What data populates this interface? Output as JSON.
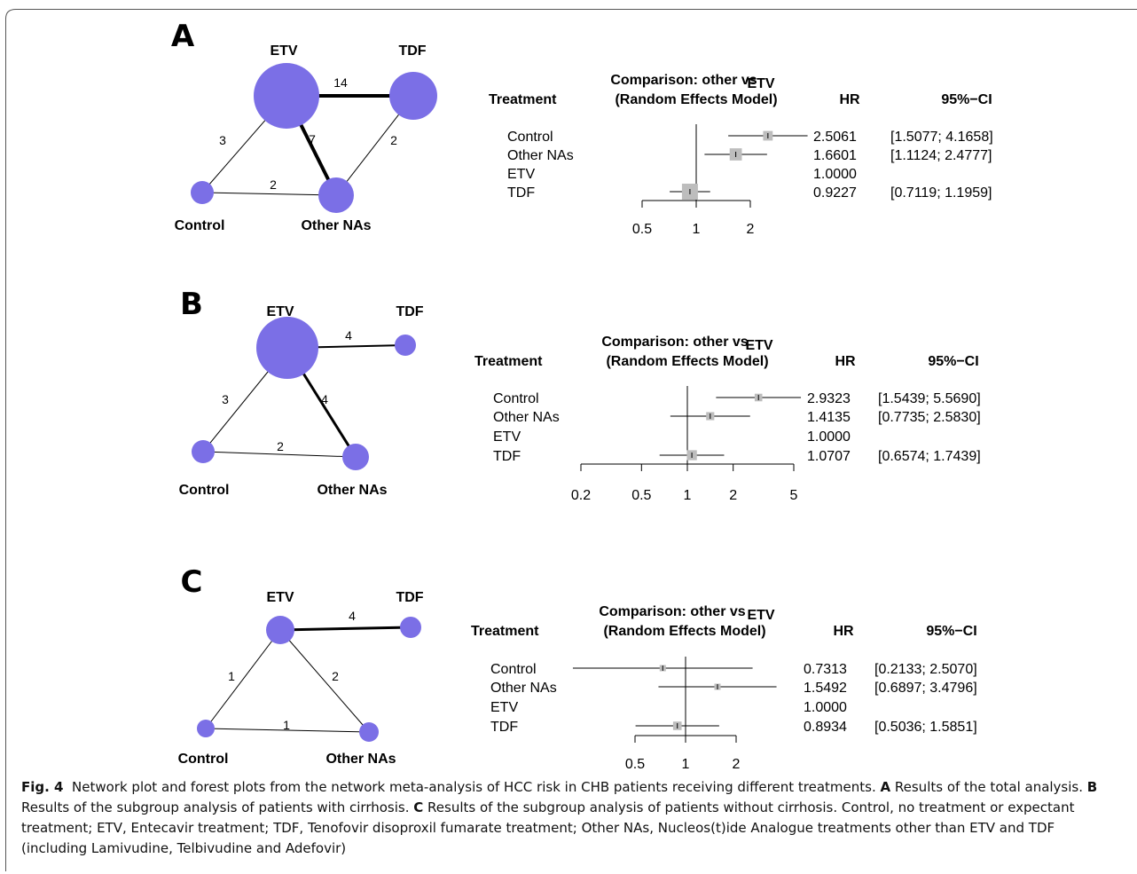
{
  "panels": [
    {
      "letter": "A",
      "network": {
        "nodes": [
          {
            "id": "ETV",
            "label": "ETV"
          },
          {
            "id": "TDF",
            "label": "TDF"
          },
          {
            "id": "Control",
            "label": "Control"
          },
          {
            "id": "OtherNAs",
            "label": "Other NAs"
          }
        ],
        "edges": [
          {
            "from": "ETV",
            "to": "TDF",
            "label": "14"
          },
          {
            "from": "ETV",
            "to": "Control",
            "label": "3"
          },
          {
            "from": "ETV",
            "to": "OtherNAs",
            "label": "7"
          },
          {
            "from": "TDF",
            "to": "OtherNAs",
            "label": "2"
          },
          {
            "from": "Control",
            "to": "OtherNAs",
            "label": "2"
          }
        ]
      },
      "forest": {
        "header_treatment": "Treatment",
        "header_comparison_1": "Comparison: other vs",
        "header_reference": "ETV",
        "header_comparison_2": "(Random Effects Model)",
        "header_hr": "HR",
        "header_ci": "95%−CI",
        "rows": [
          {
            "treatment": "Control",
            "hr": 2.5061,
            "lo": 1.5077,
            "hi": 4.1658,
            "hr_text": "2.5061",
            "ci_text": "[1.5077; 4.1658]"
          },
          {
            "treatment": "Other NAs",
            "hr": 1.6601,
            "lo": 1.1124,
            "hi": 2.4777,
            "hr_text": "1.6601",
            "ci_text": "[1.1124; 2.4777]"
          },
          {
            "treatment": "ETV",
            "hr": null,
            "lo": null,
            "hi": null,
            "hr_text": "1.0000",
            "ci_text": ""
          },
          {
            "treatment": "TDF",
            "hr": 0.9227,
            "lo": 0.7119,
            "hi": 1.1959,
            "hr_text": "0.9227",
            "ci_text": "[0.7119; 1.1959]"
          }
        ],
        "ticks": [
          0.5,
          1,
          2
        ],
        "tick_labels": [
          "0.5",
          "1",
          "2"
        ]
      }
    },
    {
      "letter": "B",
      "network": {
        "nodes": [
          {
            "id": "ETV",
            "label": "ETV"
          },
          {
            "id": "TDF",
            "label": "TDF"
          },
          {
            "id": "Control",
            "label": "Control"
          },
          {
            "id": "OtherNAs",
            "label": "Other NAs"
          }
        ],
        "edges": [
          {
            "from": "ETV",
            "to": "TDF",
            "label": "4"
          },
          {
            "from": "ETV",
            "to": "Control",
            "label": "3"
          },
          {
            "from": "ETV",
            "to": "OtherNAs",
            "label": "4"
          },
          {
            "from": "Control",
            "to": "OtherNAs",
            "label": "2"
          }
        ]
      },
      "forest": {
        "header_treatment": "Treatment",
        "header_comparison_1": "Comparison: other vs",
        "header_reference": "ETV",
        "header_comparison_2": "(Random Effects Model)",
        "header_hr": "HR",
        "header_ci": "95%−CI",
        "rows": [
          {
            "treatment": "Control",
            "hr": 2.9323,
            "lo": 1.5439,
            "hi": 5.569,
            "hr_text": "2.9323",
            "ci_text": "[1.5439; 5.5690]"
          },
          {
            "treatment": "Other NAs",
            "hr": 1.4135,
            "lo": 0.7735,
            "hi": 2.583,
            "hr_text": "1.4135",
            "ci_text": "[0.7735; 2.5830]"
          },
          {
            "treatment": "ETV",
            "hr": null,
            "lo": null,
            "hi": null,
            "hr_text": "1.0000",
            "ci_text": ""
          },
          {
            "treatment": "TDF",
            "hr": 1.0707,
            "lo": 0.6574,
            "hi": 1.7439,
            "hr_text": "1.0707",
            "ci_text": "[0.6574; 1.7439]"
          }
        ],
        "ticks": [
          0.2,
          0.5,
          1,
          2,
          5
        ],
        "tick_labels": [
          "0.2",
          "0.5",
          "1",
          "2",
          "5"
        ]
      }
    },
    {
      "letter": "C",
      "network": {
        "nodes": [
          {
            "id": "ETV",
            "label": "ETV"
          },
          {
            "id": "TDF",
            "label": "TDF"
          },
          {
            "id": "Control",
            "label": "Control"
          },
          {
            "id": "OtherNAs",
            "label": "Other NAs"
          }
        ],
        "edges": [
          {
            "from": "ETV",
            "to": "TDF",
            "label": "4"
          },
          {
            "from": "ETV",
            "to": "Control",
            "label": "1"
          },
          {
            "from": "ETV",
            "to": "OtherNAs",
            "label": "2"
          },
          {
            "from": "Control",
            "to": "OtherNAs",
            "label": "1"
          }
        ]
      },
      "forest": {
        "header_treatment": "Treatment",
        "header_comparison_1": "Comparison: other vs",
        "header_reference": "ETV",
        "header_comparison_2": "(Random Effects Model)",
        "header_hr": "HR",
        "header_ci": "95%−CI",
        "rows": [
          {
            "treatment": "Control",
            "hr": 0.7313,
            "lo": 0.2133,
            "hi": 2.507,
            "hr_text": "0.7313",
            "ci_text": "[0.2133; 2.5070]"
          },
          {
            "treatment": "Other NAs",
            "hr": 1.5492,
            "lo": 0.6897,
            "hi": 3.4796,
            "hr_text": "1.5492",
            "ci_text": "[0.6897; 3.4796]"
          },
          {
            "treatment": "ETV",
            "hr": null,
            "lo": null,
            "hi": null,
            "hr_text": "1.0000",
            "ci_text": ""
          },
          {
            "treatment": "TDF",
            "hr": 0.8934,
            "lo": 0.5036,
            "hi": 1.5851,
            "hr_text": "0.8934",
            "ci_text": "[0.5036; 1.5851]"
          }
        ],
        "ticks": [
          0.5,
          1,
          2
        ],
        "tick_labels": [
          "0.5",
          "1",
          "2"
        ]
      }
    }
  ],
  "caption": {
    "label": "Fig. 4",
    "text_1": "Network plot and forest plots from the network meta-analysis of HCC risk in CHB patients receiving different treatments.",
    "a_label": "A",
    "a_text": "Results of the total analysis.",
    "b_label": "B",
    "b_text": "Results of the subgroup analysis of patients with cirrhosis.",
    "c_label": "C",
    "c_text": "Results of the subgroup analysis of patients without cirrhosis. Control, no treatment or expectant treatment; ETV, Entecavir treatment; TDF, Tenofovir disoproxil fumarate treatment; Other NAs, Nucleos(t)ide Analogue treatments other than ETV and TDF (including Lamivudine, Telbivudine and Adefovir)"
  }
}
